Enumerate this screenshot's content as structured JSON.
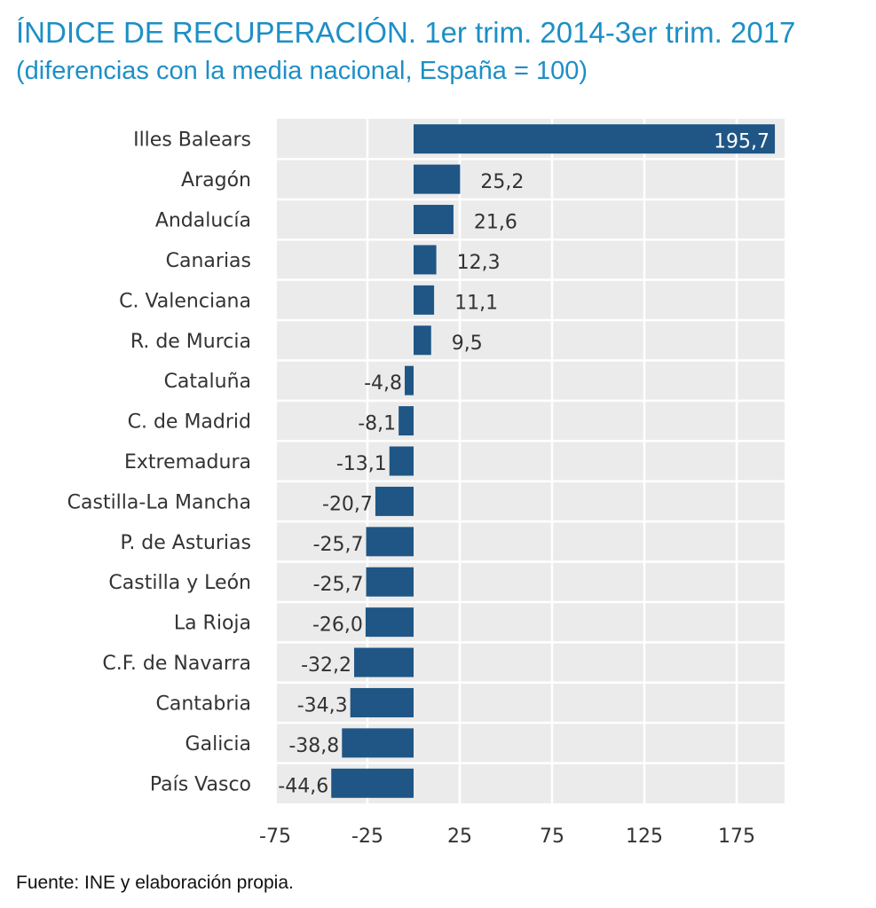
{
  "header": {
    "title": "ÍNDICE DE RECUPERACIÓN. 1er trim. 2014-3er trim. 2017",
    "subtitle": "(diferencias con la media nacional, España = 100)"
  },
  "footer": {
    "source": "Fuente: INE y elaboración propia."
  },
  "colors": {
    "title": "#1d8fc6",
    "bar": "#1f5685",
    "panel": "#ebebeb",
    "grid": "#ffffff",
    "text": "#333333"
  },
  "chart_data": {
    "type": "bar",
    "orientation": "horizontal",
    "categories": [
      "Illes Balears",
      "Aragón",
      "Andalucía",
      "Canarias",
      "C. Valenciana",
      "R. de Murcia",
      "Cataluña",
      "C. de Madrid",
      "Extremadura",
      "Castilla-La Mancha",
      "P. de Asturias",
      "Castilla y León",
      "La Rioja",
      "C.F. de Navarra",
      "Cantabria",
      "Galicia",
      "País Vasco"
    ],
    "values": [
      195.7,
      25.2,
      21.6,
      12.3,
      11.1,
      9.5,
      -4.8,
      -8.1,
      -13.1,
      -20.7,
      -25.7,
      -25.7,
      -26.0,
      -32.2,
      -34.3,
      -38.8,
      -44.6
    ],
    "value_labels": [
      "195,7",
      "25,2",
      "21,6",
      "12,3",
      "11,1",
      "9,5",
      "-4,8",
      "-8,1",
      "-13,1",
      "-20,7",
      "-25,7",
      "-25,7",
      "-26,0",
      "-32,2",
      "-34,3",
      "-38,8",
      "-44,6"
    ],
    "xticks": [
      -75,
      -25,
      25,
      75,
      125,
      175
    ],
    "xtick_labels": [
      "-75",
      "-25",
      "25",
      "75",
      "125",
      "175"
    ],
    "xlim": [
      -75,
      200
    ],
    "grid": true
  }
}
